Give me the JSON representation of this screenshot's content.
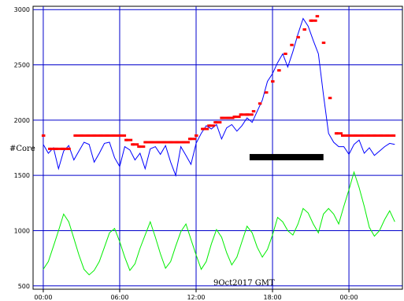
{
  "chart_data": {
    "type": "line",
    "title": "",
    "date_label": "9Oct2017 GMT",
    "ylabel": "#Core",
    "xlabel": "",
    "x_ticks": [
      "00:00",
      "06:00",
      "12:00",
      "18:00",
      "00:00"
    ],
    "x_tick_hours": [
      0,
      6,
      12,
      18,
      24
    ],
    "xlim_hours": [
      -0.8,
      28.2
    ],
    "y_ticks": [
      "500",
      "1000",
      "1500",
      "2000",
      "2500",
      "3000"
    ],
    "y_tick_values": [
      500,
      1000,
      1500,
      2000,
      2500,
      3000
    ],
    "ylim": [
      470,
      3030
    ],
    "grid": true,
    "colors": {
      "grid": "#0000cc",
      "blue_series": "#0000ff",
      "red_series": "#ff0000",
      "green_series": "#00ee00",
      "annotation_bar": "#000000"
    },
    "annotation_bar": {
      "x_start_hours": 16.2,
      "x_end_hours": 22.0,
      "y": 1665
    },
    "series": [
      {
        "style": "line",
        "color": "#0000ff",
        "x": [
          0,
          0.4,
          0.8,
          1.2,
          1.6,
          2.0,
          2.4,
          2.8,
          3.2,
          3.6,
          4.0,
          4.4,
          4.8,
          5.2,
          5.6,
          6.0,
          6.4,
          6.8,
          7.2,
          7.6,
          8.0,
          8.4,
          8.8,
          9.2,
          9.6,
          10.0,
          10.4,
          10.8,
          11.2,
          11.6,
          12.0,
          12.4,
          12.8,
          13.2,
          13.6,
          14.0,
          14.4,
          14.8,
          15.2,
          15.6,
          16.0,
          16.4,
          16.8,
          17.2,
          17.6,
          18.0,
          18.4,
          18.8,
          19.2,
          19.6,
          20.0,
          20.4,
          20.8,
          21.2,
          21.6,
          22.0,
          22.4,
          22.8,
          23.2,
          23.6,
          24.0,
          24.4,
          24.8,
          25.2,
          25.6,
          26.0,
          26.4,
          26.8,
          27.2,
          27.6
        ],
        "values": [
          1780,
          1700,
          1750,
          1560,
          1720,
          1770,
          1640,
          1720,
          1800,
          1780,
          1620,
          1700,
          1790,
          1800,
          1660,
          1580,
          1760,
          1730,
          1640,
          1700,
          1560,
          1740,
          1760,
          1690,
          1770,
          1620,
          1500,
          1760,
          1680,
          1600,
          1790,
          1880,
          1950,
          1920,
          1960,
          1830,
          1930,
          1960,
          1900,
          1950,
          2020,
          1980,
          2080,
          2180,
          2350,
          2420,
          2520,
          2600,
          2480,
          2620,
          2780,
          2920,
          2850,
          2720,
          2600,
          2230,
          1880,
          1800,
          1760,
          1760,
          1690,
          1780,
          1820,
          1700,
          1750,
          1680,
          1720,
          1760,
          1790,
          1780
        ]
      },
      {
        "style": "markers",
        "color": "#ff0000",
        "x": [
          0,
          0.5,
          1,
          1.5,
          2,
          2.5,
          3,
          3.5,
          4,
          4.5,
          5,
          5.5,
          6,
          6.5,
          7,
          7.5,
          8,
          8.5,
          9,
          9.5,
          10,
          10.5,
          11,
          11.5,
          12,
          12.5,
          13,
          13.5,
          14,
          14.5,
          15,
          15.5,
          16,
          16.5,
          17,
          17.5,
          18,
          18.5,
          19,
          19.5,
          20,
          20.5,
          21,
          21.5,
          22,
          22.5,
          23,
          23.5,
          24,
          24.5,
          25,
          25.5,
          26,
          26.5,
          27,
          27.5
        ],
        "values": [
          1860,
          1740,
          1740,
          1740,
          1740,
          1860,
          1860,
          1860,
          1860,
          1860,
          1860,
          1860,
          1860,
          1820,
          1780,
          1760,
          1800,
          1800,
          1800,
          1800,
          1800,
          1800,
          1800,
          1830,
          1860,
          1920,
          1950,
          1980,
          2020,
          2020,
          2030,
          2050,
          2050,
          2080,
          2150,
          2250,
          2350,
          2450,
          2600,
          2680,
          2750,
          2820,
          2900,
          2940,
          2700,
          2200,
          1880,
          1860,
          1860,
          1860,
          1860,
          1860,
          1860,
          1860,
          1860,
          1860
        ]
      },
      {
        "style": "line",
        "color": "#00ee00",
        "x": [
          0,
          0.4,
          0.8,
          1.2,
          1.6,
          2.0,
          2.4,
          2.8,
          3.2,
          3.6,
          4.0,
          4.4,
          4.8,
          5.2,
          5.6,
          6.0,
          6.4,
          6.8,
          7.2,
          7.6,
          8.0,
          8.4,
          8.8,
          9.2,
          9.6,
          10.0,
          10.4,
          10.8,
          11.2,
          11.6,
          12.0,
          12.4,
          12.8,
          13.2,
          13.6,
          14.0,
          14.4,
          14.8,
          15.2,
          15.6,
          16.0,
          16.4,
          16.8,
          17.2,
          17.6,
          18.0,
          18.4,
          18.8,
          19.2,
          19.6,
          20.0,
          20.4,
          20.8,
          21.2,
          21.6,
          22.0,
          22.4,
          22.8,
          23.2,
          23.6,
          24.0,
          24.4,
          24.8,
          25.2,
          25.6,
          26.0,
          26.4,
          26.8,
          27.2,
          27.6
        ],
        "values": [
          650,
          720,
          860,
          1000,
          1150,
          1080,
          930,
          780,
          650,
          600,
          640,
          720,
          850,
          980,
          1020,
          900,
          760,
          640,
          700,
          840,
          960,
          1080,
          940,
          790,
          660,
          720,
          860,
          990,
          1060,
          920,
          780,
          650,
          720,
          880,
          1010,
          940,
          800,
          690,
          760,
          900,
          1040,
          980,
          850,
          760,
          830,
          960,
          1120,
          1080,
          1000,
          960,
          1060,
          1200,
          1160,
          1060,
          980,
          1150,
          1200,
          1150,
          1060,
          1220,
          1370,
          1530,
          1390,
          1220,
          1030,
          950,
          1000,
          1100,
          1180,
          1080
        ]
      }
    ]
  }
}
